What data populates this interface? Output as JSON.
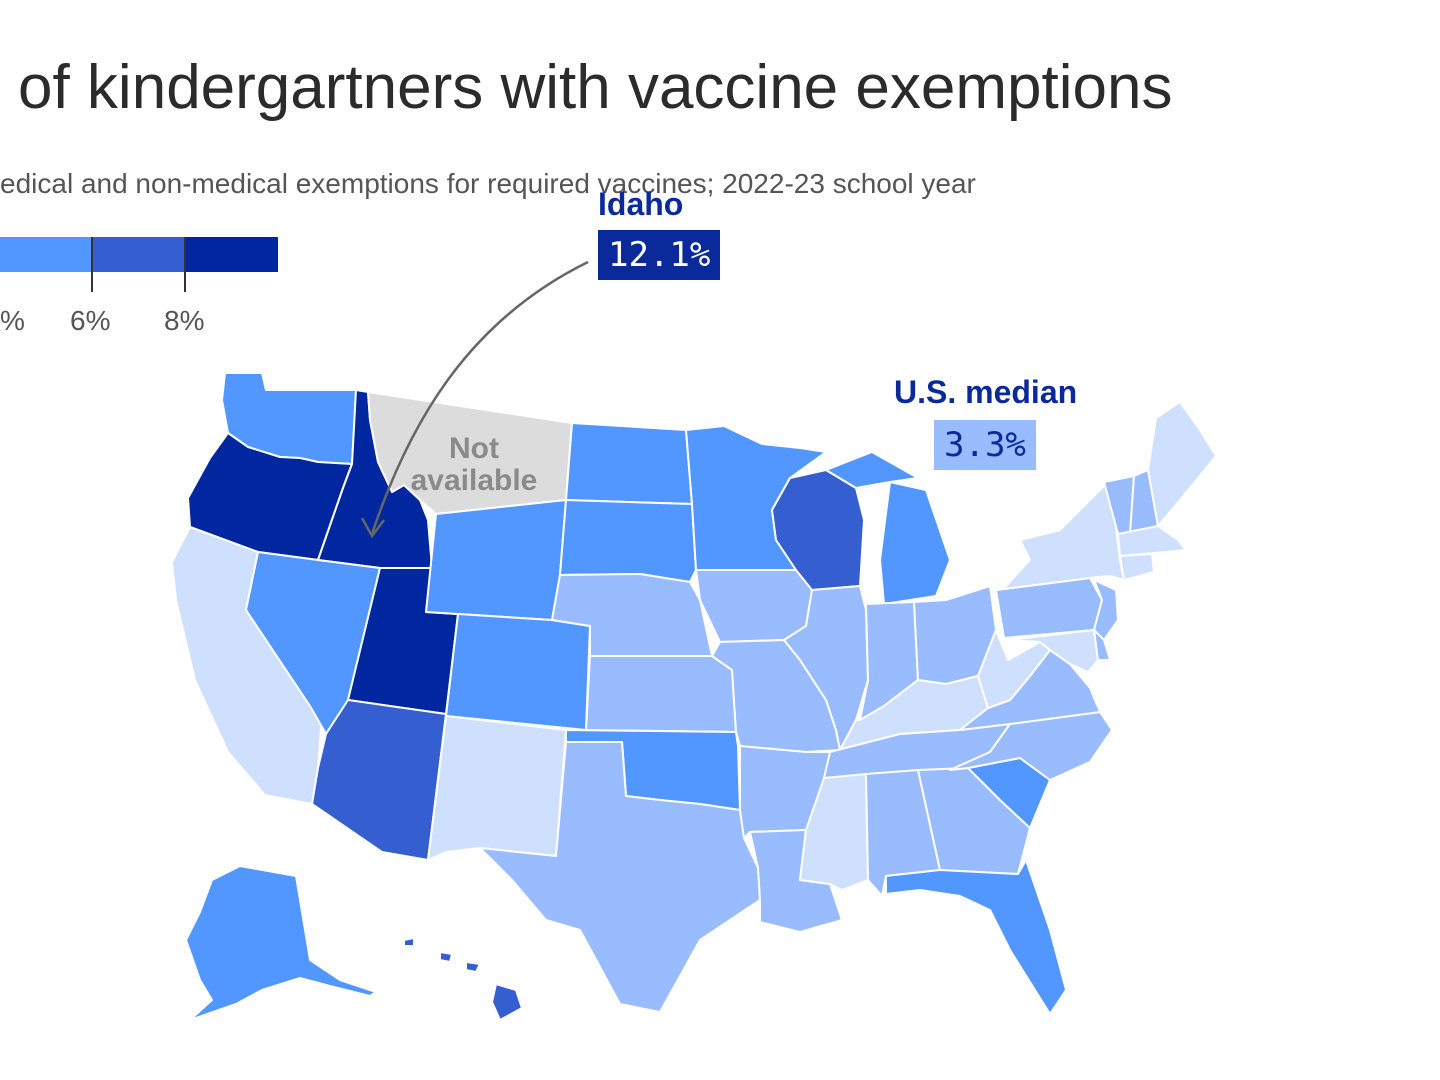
{
  "title": "of kindergartners with vaccine exemptions",
  "subtitle": "edical and non-medical exemptions for required vaccines; 2022-23 school year",
  "legend": {
    "labels": [
      "%",
      "6%",
      "8%"
    ],
    "colors": {
      "lightest": "#cfe0ff",
      "light": "#99bbff",
      "mid": "#5197ff",
      "dark": "#355ed1",
      "darkest": "#0026a0",
      "na": "#dcdcdc"
    }
  },
  "callouts": {
    "idaho": {
      "name": "Idaho",
      "value": "12.1%"
    },
    "median": {
      "name": "U.S. median",
      "value": "3.3%"
    }
  },
  "na_label": {
    "line1": "Not",
    "line2": "available"
  },
  "states": [
    {
      "name": "Washington",
      "bin": "mid"
    },
    {
      "name": "Oregon",
      "bin": "darkest"
    },
    {
      "name": "Idaho",
      "bin": "darkest"
    },
    {
      "name": "Montana",
      "bin": "na"
    },
    {
      "name": "California",
      "bin": "lightest"
    },
    {
      "name": "Nevada",
      "bin": "mid"
    },
    {
      "name": "Utah",
      "bin": "darkest"
    },
    {
      "name": "Arizona",
      "bin": "dark"
    },
    {
      "name": "Wyoming",
      "bin": "mid"
    },
    {
      "name": "Colorado",
      "bin": "mid"
    },
    {
      "name": "New Mexico",
      "bin": "lightest"
    },
    {
      "name": "North Dakota",
      "bin": "mid"
    },
    {
      "name": "South Dakota",
      "bin": "mid"
    },
    {
      "name": "Nebraska",
      "bin": "light"
    },
    {
      "name": "Kansas",
      "bin": "light"
    },
    {
      "name": "Oklahoma",
      "bin": "mid"
    },
    {
      "name": "Texas",
      "bin": "light"
    },
    {
      "name": "Minnesota",
      "bin": "mid"
    },
    {
      "name": "Iowa",
      "bin": "light"
    },
    {
      "name": "Missouri",
      "bin": "light"
    },
    {
      "name": "Arkansas",
      "bin": "light"
    },
    {
      "name": "Louisiana",
      "bin": "light"
    },
    {
      "name": "Wisconsin",
      "bin": "dark"
    },
    {
      "name": "Illinois",
      "bin": "light"
    },
    {
      "name": "Michigan",
      "bin": "mid"
    },
    {
      "name": "Indiana",
      "bin": "light"
    },
    {
      "name": "Ohio",
      "bin": "light"
    },
    {
      "name": "Kentucky",
      "bin": "lightest"
    },
    {
      "name": "Tennessee",
      "bin": "light"
    },
    {
      "name": "Mississippi",
      "bin": "lightest"
    },
    {
      "name": "Alabama",
      "bin": "light"
    },
    {
      "name": "Georgia",
      "bin": "light"
    },
    {
      "name": "Florida",
      "bin": "mid"
    },
    {
      "name": "South Carolina",
      "bin": "mid"
    },
    {
      "name": "North Carolina",
      "bin": "light"
    },
    {
      "name": "Virginia",
      "bin": "light"
    },
    {
      "name": "West Virginia",
      "bin": "lightest"
    },
    {
      "name": "Pennsylvania",
      "bin": "light"
    },
    {
      "name": "New York",
      "bin": "lightest"
    },
    {
      "name": "Vermont",
      "bin": "light"
    },
    {
      "name": "New Hampshire",
      "bin": "light"
    },
    {
      "name": "Maine",
      "bin": "lightest"
    },
    {
      "name": "Massachusetts",
      "bin": "lightest"
    },
    {
      "name": "Connecticut",
      "bin": "lightest"
    },
    {
      "name": "New Jersey",
      "bin": "light"
    },
    {
      "name": "Maryland",
      "bin": "lightest"
    },
    {
      "name": "Delaware",
      "bin": "light"
    },
    {
      "name": "Alaska",
      "bin": "mid"
    },
    {
      "name": "Hawaii",
      "bin": "dark"
    }
  ]
}
